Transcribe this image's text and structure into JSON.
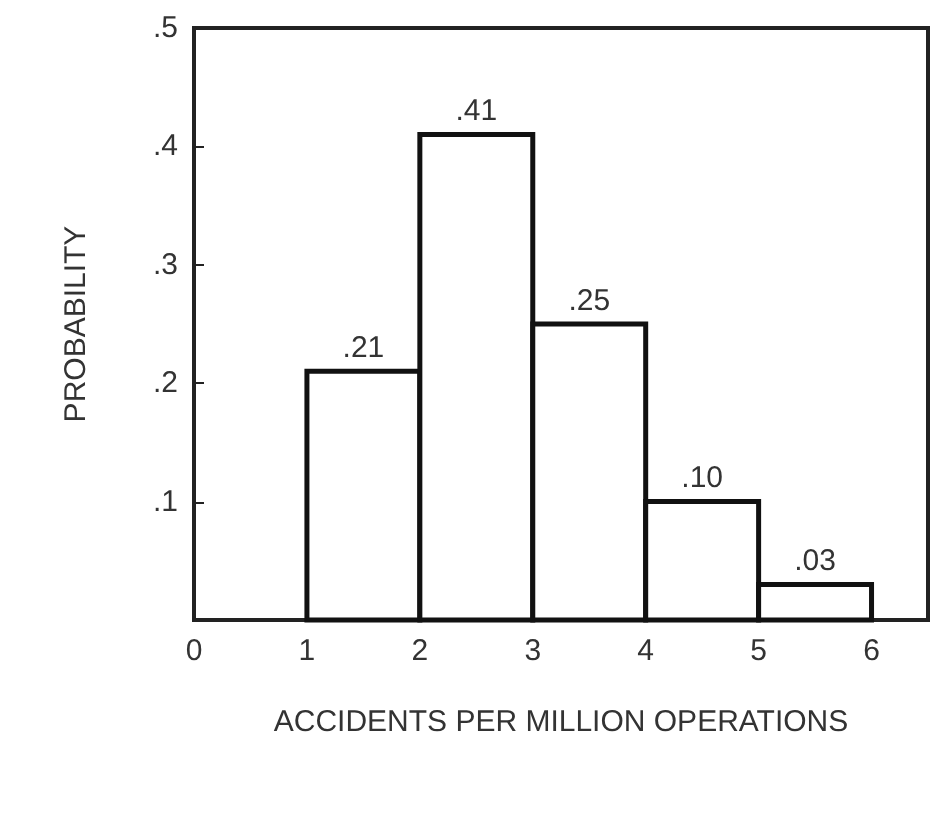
{
  "chart_data": {
    "type": "histogram",
    "xlabel": "ACCIDENTS PER MILLION OPERATIONS",
    "ylabel": "PROBABILITY",
    "bins": [
      1,
      2,
      3,
      4,
      5,
      6
    ],
    "values": [
      0.21,
      0.41,
      0.25,
      0.1,
      0.03
    ],
    "value_labels": [
      ".21",
      ".41",
      ".25",
      ".10",
      ".03"
    ],
    "color": "#ffffff",
    "xlim": [
      0,
      6.5
    ],
    "xticks": [
      0,
      1,
      2,
      3,
      4,
      5,
      6
    ],
    "ylim": [
      0,
      0.5
    ],
    "yticks": [
      {
        "value": 0.1,
        "label": ".1"
      },
      {
        "value": 0.2,
        "label": ".2"
      },
      {
        "value": 0.3,
        "label": ".3"
      },
      {
        "value": 0.4,
        "label": ".4"
      },
      {
        "value": 0.5,
        "label": ".5"
      }
    ],
    "grid": false
  }
}
